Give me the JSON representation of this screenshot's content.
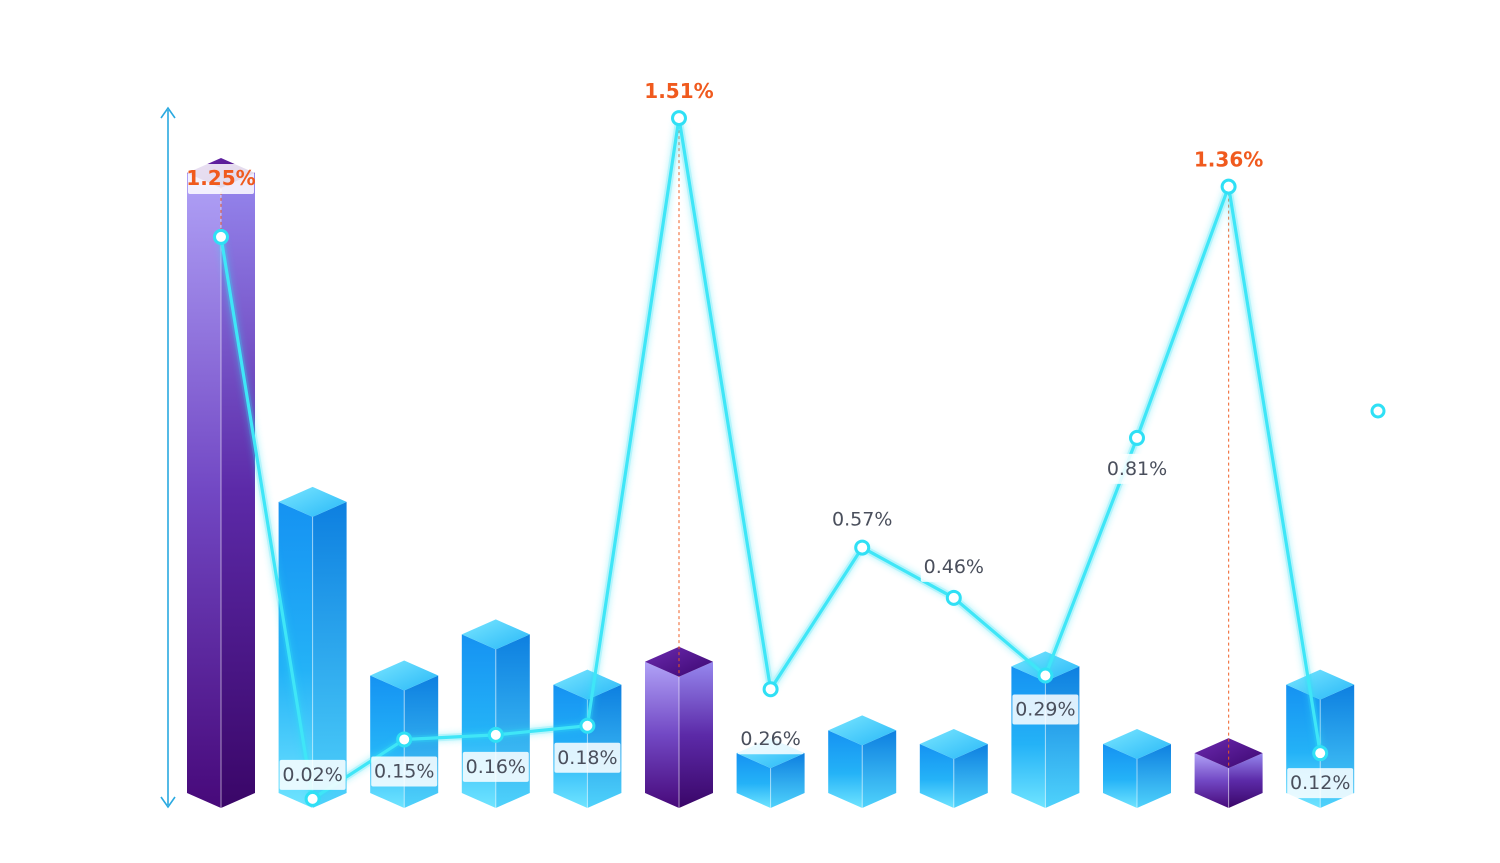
{
  "chart_data": {
    "type": "bar",
    "title": "",
    "xlabel": "",
    "ylabel": "",
    "categories": [
      "",
      "",
      "",
      "",
      "",
      "",
      "",
      "",
      "",
      "",
      "",
      "",
      ""
    ],
    "series": [
      {
        "kind": "bar",
        "values": [
          1.39,
          0.67,
          0.29,
          0.38,
          0.27,
          0.32,
          0.12,
          0.17,
          0.14,
          0.31,
          0.14,
          0.12,
          0.27
        ]
      },
      {
        "kind": "line",
        "values": [
          1.25,
          0.02,
          0.15,
          0.16,
          0.18,
          1.51,
          0.26,
          0.57,
          0.46,
          0.29,
          0.81,
          1.36,
          0.12
        ],
        "labels": [
          "1.25%",
          "0.02%",
          "0.15%",
          "0.16%",
          "0.18%",
          "1.51%",
          "0.26%",
          "0.57%",
          "0.46%",
          "0.29%",
          "0.81%",
          "1.36%",
          "0.12%"
        ]
      }
    ],
    "highlighted_indices": [
      0,
      5,
      11
    ],
    "ylim": [
      0,
      1.6
    ],
    "grid": false,
    "legend": "right",
    "colors": {
      "bar_blue": "#1a9bf5",
      "bar_blue_light": "#6fe0ff",
      "bar_purple": "#4a0a7a",
      "bar_purple_light": "#a99af5",
      "line": "#2fe0f5",
      "highlight_label": "#f05a1e",
      "label": "#4a4f5c",
      "axis_arrow": "#2aa9e0"
    }
  }
}
